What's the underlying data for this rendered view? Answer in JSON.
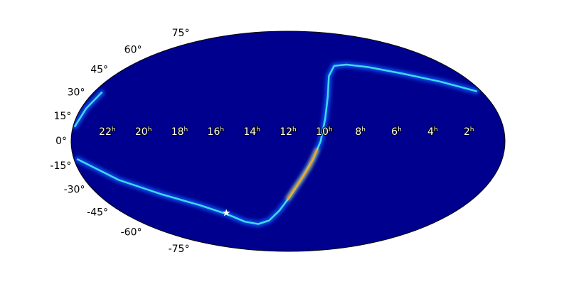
{
  "chart_data": {
    "type": "skymap",
    "projection": "mollweide",
    "background_color": "#00008f",
    "xlim": [
      24,
      0
    ],
    "ylim": [
      -90,
      90
    ],
    "xticks": [
      22,
      20,
      18,
      16,
      14,
      12,
      10,
      8,
      6,
      4,
      2
    ],
    "xtick_unit": "h",
    "yticks": [
      {
        "value": 75,
        "label": "75°"
      },
      {
        "value": 60,
        "label": "60°"
      },
      {
        "value": 45,
        "label": "45°"
      },
      {
        "value": 30,
        "label": "30°"
      },
      {
        "value": 15,
        "label": "15°"
      },
      {
        "value": 0,
        "label": "0°"
      },
      {
        "value": -15,
        "label": "-15°"
      },
      {
        "value": -30,
        "label": "-30°"
      },
      {
        "value": -45,
        "label": "-45°"
      },
      {
        "value": -60,
        "label": "-60°"
      },
      {
        "value": -75,
        "label": "-75°"
      }
    ],
    "series": [
      {
        "color": "#40d8f0",
        "x": [
          23.5,
          23.7,
          23.9,
          null,
          0.3,
          2,
          4,
          6,
          7.5,
          8.5,
          9.2,
          9.6,
          9.9,
          10.2,
          10.6,
          11.2,
          11.9,
          12.6,
          13.5,
          14.5,
          15.5,
          16.5,
          18,
          20,
          22,
          23.8
        ],
        "values": [
          33,
          22,
          10,
          null,
          34,
          41,
          47,
          52,
          54,
          53,
          45,
          30,
          15,
          0,
          -12,
          -25,
          -38,
          -48,
          -56,
          -59,
          -57,
          -51,
          -44,
          -36,
          -26,
          -12
        ]
      },
      {
        "color": "#f0a020",
        "x": [
          10.4,
          10.8,
          11.2,
          11.6,
          12.0
        ],
        "values": [
          -6,
          -17,
          -25,
          -32,
          -39
        ]
      }
    ],
    "marker": {
      "ra": 16.5,
      "dec": -50,
      "color": "#ffffff"
    }
  }
}
